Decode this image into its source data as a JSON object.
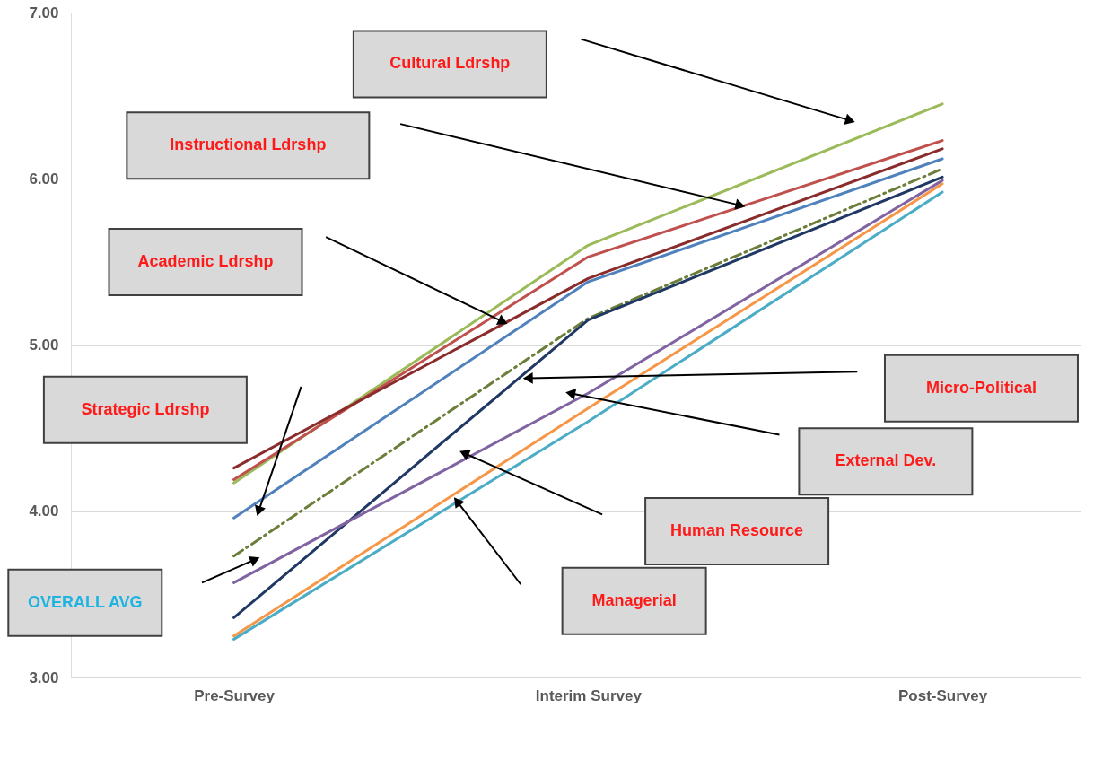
{
  "chart_data": {
    "type": "line",
    "categories": [
      "Pre-Survey",
      "Interim Survey",
      "Post-Survey"
    ],
    "ylim": [
      3,
      7
    ],
    "yticks": [
      {
        "value": 3,
        "label": "3.00"
      },
      {
        "value": 4,
        "label": "4.00"
      },
      {
        "value": 5,
        "label": "5.00"
      },
      {
        "value": 6,
        "label": "6.00"
      },
      {
        "value": 7,
        "label": "7.00"
      }
    ],
    "grid": "y",
    "legend": false,
    "marker": "none",
    "series": [
      {
        "color": "#9bbb59",
        "values": [
          4.17,
          5.6,
          6.45
        ]
      },
      {
        "color": "#c0504d",
        "values": [
          4.19,
          5.53,
          6.23
        ]
      },
      {
        "color": "#8b2c2c",
        "values": [
          4.26,
          5.4,
          6.18
        ]
      },
      {
        "color": "#4f81bd",
        "values": [
          3.96,
          5.38,
          6.12
        ]
      },
      {
        "color": "#6b7f3a",
        "values": [
          3.73,
          5.16,
          6.06
        ],
        "line_style": "dashed"
      },
      {
        "color": "#1f3864",
        "values": [
          3.36,
          5.15,
          6.01
        ]
      },
      {
        "color": "#f79646",
        "values": [
          3.25,
          4.62,
          5.97
        ]
      },
      {
        "color": "#8064a2",
        "values": [
          3.57,
          4.71,
          5.99
        ]
      },
      {
        "color": "#4bacc6",
        "values": [
          3.23,
          4.54,
          5.92
        ]
      }
    ],
    "annotations": [
      "Cultural Ldrshp",
      "Instructional Ldrshp",
      "Academic Ldrshp",
      "Strategic Ldrshp",
      "OVERALL AVG",
      "Micro-Political",
      "External Dev.",
      "Human Resource",
      "Managerial"
    ]
  }
}
